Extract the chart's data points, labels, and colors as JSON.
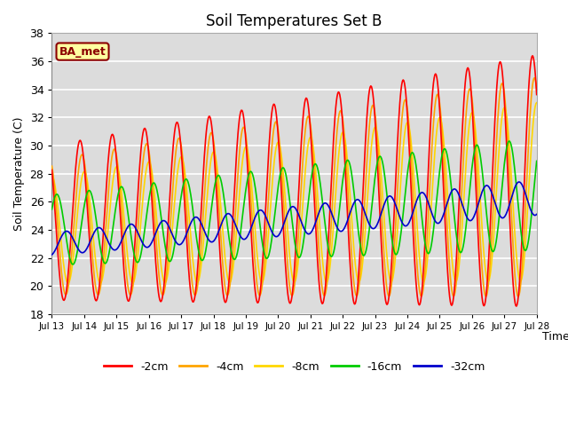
{
  "title": "Soil Temperatures Set B",
  "xlabel": "Time",
  "ylabel": "Soil Temperature (C)",
  "ylim": [
    18,
    38
  ],
  "x_tick_labels": [
    "Jul 13",
    "Jul 14",
    "Jul 15",
    "Jul 16",
    "Jul 17",
    "Jul 18",
    "Jul 19",
    "Jul 20",
    "Jul 21",
    "Jul 22",
    "Jul 23",
    "Jul 24",
    "Jul 25",
    "Jul 26",
    "Jul 27",
    "Jul 28"
  ],
  "annotation_text": "BA_met",
  "annotation_color": "#8B0000",
  "annotation_bg": "#FFFFA0",
  "annotation_border": "#8B0000",
  "colors": {
    "-2cm": "#FF0000",
    "-4cm": "#FFA500",
    "-8cm": "#FFD700",
    "-16cm": "#00CC00",
    "-32cm": "#0000CC"
  },
  "plot_bg": "#DCDCDC",
  "fig_bg": "#FFFFFF",
  "grid_color": "#FFFFFF",
  "linewidth": 1.2
}
